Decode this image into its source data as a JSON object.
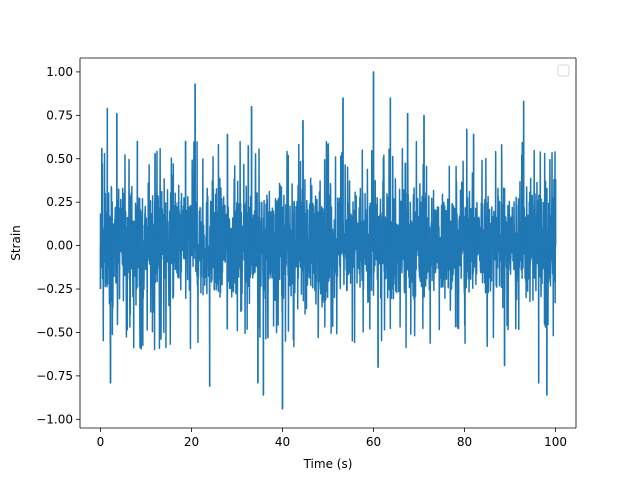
{
  "chart_data": {
    "type": "line",
    "title": "",
    "xlabel": "Time (s)",
    "ylabel": "Strain",
    "xlim": [
      -4.5,
      104.5
    ],
    "ylim": [
      -1.05,
      1.08
    ],
    "xticks": [
      0,
      20,
      40,
      60,
      80,
      100
    ],
    "xtick_labels": [
      "0",
      "20",
      "40",
      "60",
      "80",
      "100"
    ],
    "yticks": [
      -1.0,
      -0.75,
      -0.5,
      -0.25,
      0.0,
      0.25,
      0.5,
      0.75,
      1.0
    ],
    "ytick_labels": [
      "−1.00",
      "−0.75",
      "−0.50",
      "−0.25",
      "0.00",
      "0.25",
      "0.50",
      "0.75",
      "1.00"
    ],
    "grid": false,
    "legend": {
      "placement": "top-right",
      "entries": []
    },
    "series": [
      {
        "color": "#1f77b4",
        "x_range": [
          0,
          100
        ],
        "typical_band": [
          -0.35,
          0.42
        ],
        "x": [
          0,
          0.3,
          1.5,
          2.2,
          3.6,
          8.1,
          12.0,
          16.0,
          18.7,
          20.8,
          24.0,
          27.9,
          33.2,
          34.6,
          35.8,
          40.0,
          44.5,
          53.3,
          60.0,
          61.0,
          63.7,
          67.5,
          71.1,
          80.5,
          82.0,
          85.0,
          88.8,
          93.0,
          96.3,
          98.1,
          99.5,
          100.0
        ],
        "y": [
          -0.25,
          0.56,
          0.79,
          -0.79,
          0.76,
          0.6,
          0.53,
          0.47,
          0.6,
          0.93,
          -0.81,
          0.64,
          0.8,
          -0.79,
          -0.86,
          -0.94,
          0.72,
          0.85,
          1.0,
          -0.7,
          0.85,
          0.76,
          0.75,
          0.67,
          0.64,
          -0.58,
          -0.69,
          0.83,
          -0.79,
          -0.86,
          -0.41,
          0.38
        ]
      }
    ]
  }
}
